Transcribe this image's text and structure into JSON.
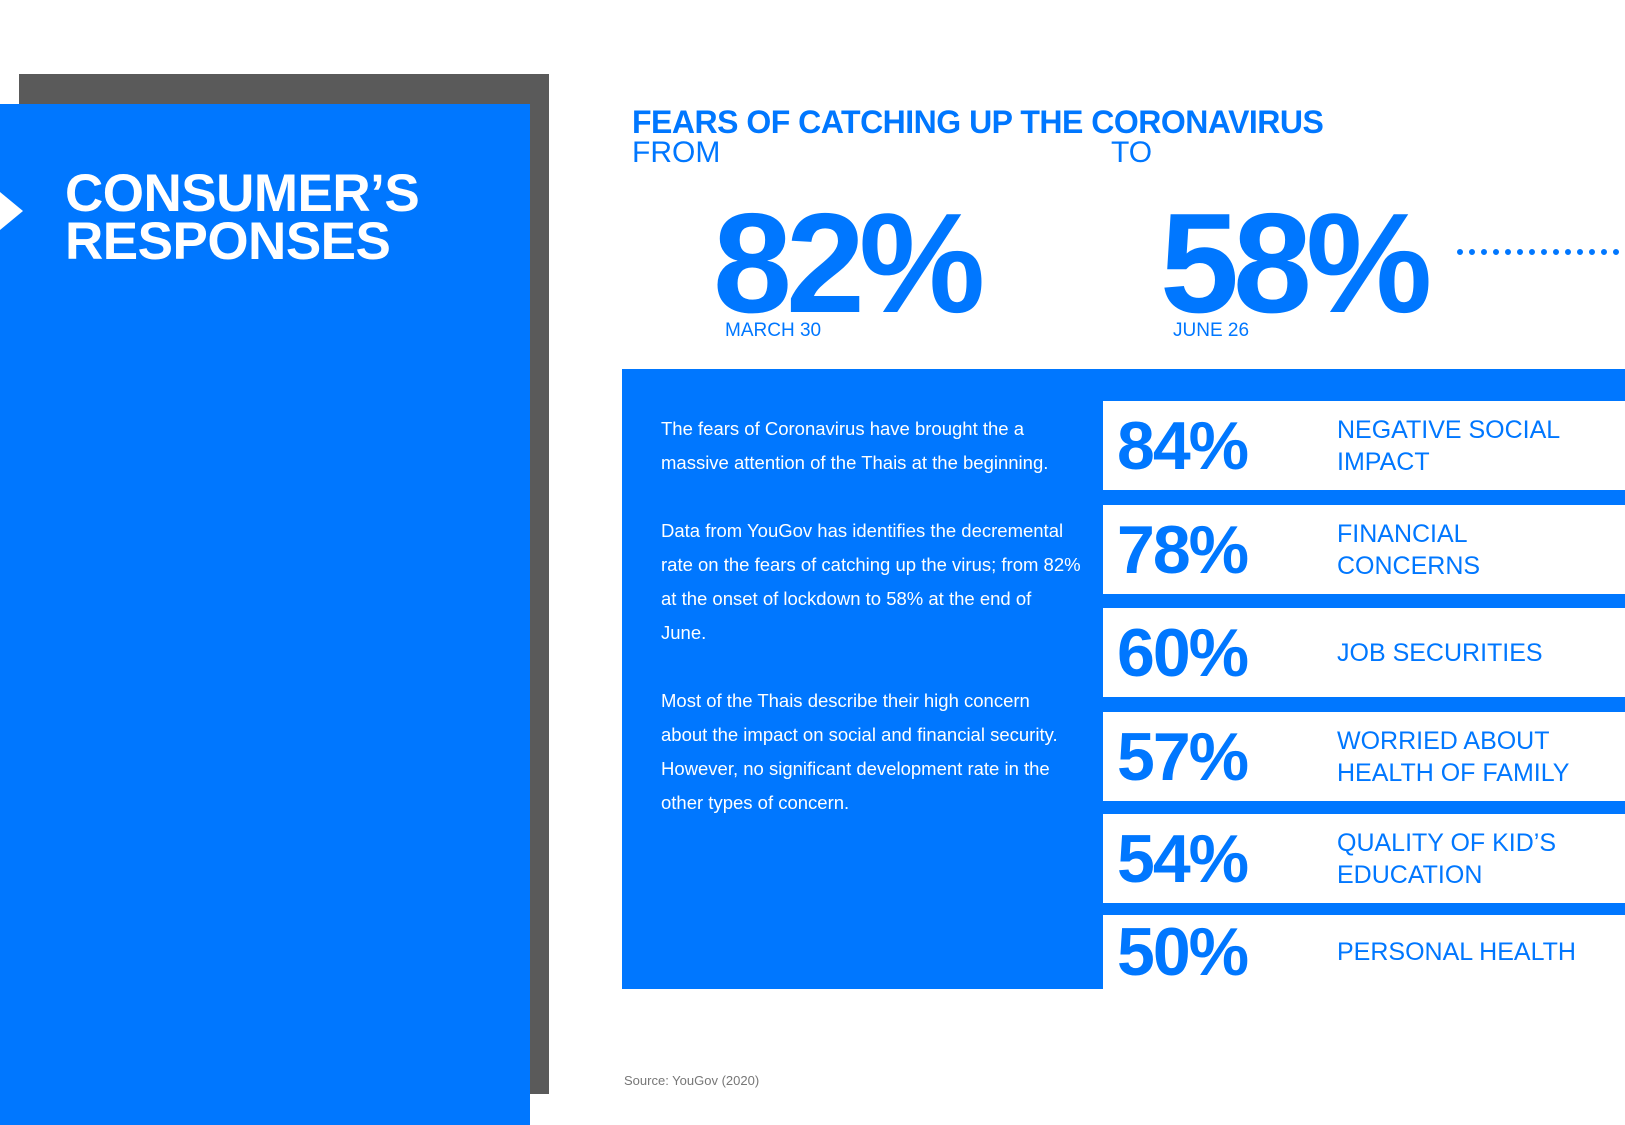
{
  "sidebar": {
    "title_lines": [
      "CONSUMER’S",
      "RESPONSES"
    ]
  },
  "header": {
    "title": "FEARS OF CATCHING UP THE CORONAVIRUS",
    "from": {
      "label": "FROM",
      "value": "82%",
      "date": "MARCH 30"
    },
    "to": {
      "label": "TO",
      "value": "58%",
      "date": "JUNE 26"
    }
  },
  "paragraphs": [
    "The fears of Coronavirus have brought the a massive attention of the Thais at the beginning.",
    "Data from YouGov has identifies the decremental rate on the fears of catching up the virus; from 82% at the onset of lockdown to 58% at the end of June.",
    "Most of the Thais describe their high concern about the impact on social and financial security. However, no significant development rate in the other types of concern."
  ],
  "stats": [
    {
      "value": "84%",
      "label": "NEGATIVE SOCIAL IMPACT"
    },
    {
      "value": "78%",
      "label": "FINANCIAL CONCERNS"
    },
    {
      "value": "60%",
      "label": "JOB SECURITIES"
    },
    {
      "value": "57%",
      "label": "WORRIED ABOUT HEALTH OF FAMILY"
    },
    {
      "value": "54%",
      "label": "QUALITY OF KID’S EDUCATION"
    },
    {
      "value": "50%",
      "label": "PERSONAL HEALTH"
    }
  ],
  "source": "Source: YouGov (2020)"
}
